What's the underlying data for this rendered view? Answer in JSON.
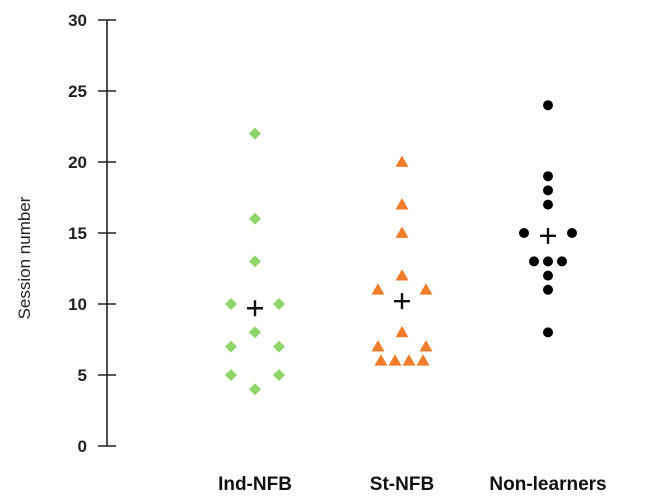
{
  "chart_data": {
    "type": "scatter",
    "title": "",
    "xlabel": "",
    "ylabel": "Session number",
    "ylim": [
      0,
      30
    ],
    "yticks": [
      0,
      5,
      10,
      15,
      20,
      25,
      30
    ],
    "grid": false,
    "categories": [
      "Ind-NFB",
      "St-NFB",
      "Non-learners"
    ],
    "series": [
      {
        "category": "Ind-NFB",
        "marker": "diamond",
        "color": "#8fd46a",
        "values": [
          22,
          16,
          13,
          10,
          10,
          8,
          7,
          7,
          5,
          5,
          4
        ],
        "mean": 9.7
      },
      {
        "category": "St-NFB",
        "marker": "triangle",
        "color": "#f07c2c",
        "values": [
          20,
          17,
          15,
          12,
          11,
          11,
          8,
          7,
          7,
          6,
          6,
          6,
          6
        ],
        "mean": 10.2
      },
      {
        "category": "Non-learners",
        "marker": "circle",
        "color": "#000000",
        "values": [
          24,
          19,
          18,
          17,
          15,
          15,
          13,
          13,
          13,
          12,
          11,
          8
        ],
        "mean": 14.8
      }
    ],
    "mean_marker": "plus"
  }
}
